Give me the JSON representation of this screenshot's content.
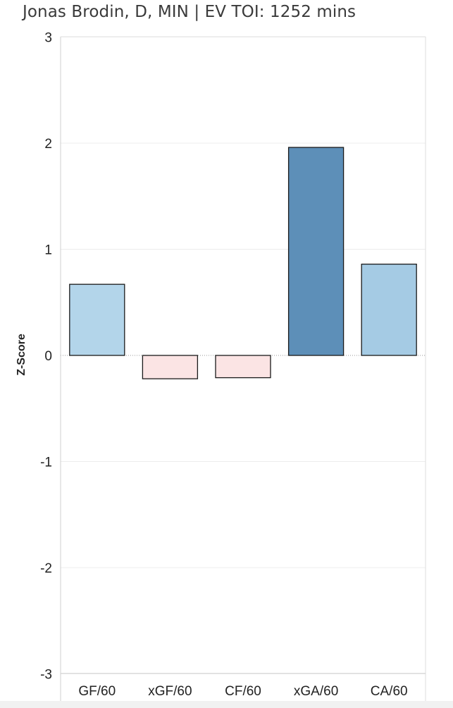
{
  "title": "Jonas Brodin, D, MIN | EV TOI: 1252 mins",
  "chart_data": {
    "type": "bar",
    "title": "Jonas Brodin, D, MIN | EV TOI: 1252 mins",
    "xlabel": "",
    "ylabel": "Z-Score",
    "ylim": [
      -3.1,
      3.1
    ],
    "yticks": [
      3,
      2,
      1,
      0,
      -1,
      -2,
      -3
    ],
    "categories": [
      "GF/60",
      "xGF/60",
      "CF/60",
      "xGA/60",
      "CA/60"
    ],
    "values": [
      0.67,
      -0.22,
      -0.21,
      1.96,
      0.86
    ],
    "colors": [
      "#b3d5ea",
      "#fbe4e4",
      "#fbe4e4",
      "#5d8fb8",
      "#a5cbe4"
    ],
    "grid": true,
    "legend": "none"
  }
}
